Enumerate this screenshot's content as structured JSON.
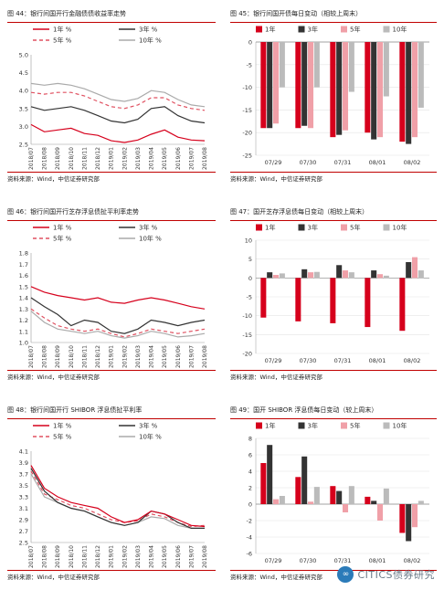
{
  "panels": [
    {
      "title": "图 44：银行间国开行金融债债收益率走势",
      "source": "资料来源：Wind，中信证券研究部"
    },
    {
      "title": "图 45：银行间国开债每日变动（相较上周末）",
      "source": "资料来源：Wind，中信证券研究部"
    },
    {
      "title": "图 46：银行间国开行芝存浮息债扯平利率走势",
      "source": "资料来源：Wind，中信证券研究部"
    },
    {
      "title": "图 47：国开芝存浮息债每日变动（相较上周末）",
      "source": "资料来源：Wind，中信证券研究部"
    },
    {
      "title": "图 48：银行间国开行 SHIBOR 浮息债扯平利率",
      "source": "资料来源：Wind，中信证券研究部"
    },
    {
      "title": "图 49：国开 SHIBOR 浮息债每日变动（较上周末）",
      "source": "资料来源：Wind，中信证券研究部"
    }
  ],
  "watermark": {
    "text": "CITICS债券研究",
    "logo": "∞"
  },
  "chart_data": [
    {
      "type": "line",
      "legend_position": "top",
      "x": [
        "2018/07",
        "2018/08",
        "2018/09",
        "2018/10",
        "2018/11",
        "2018/12",
        "2019/01",
        "2019/02",
        "2019/03",
        "2019/04",
        "2019/05",
        "2019/06",
        "2019/07",
        "2019/08"
      ],
      "ylim": [
        2.5,
        5.0
      ],
      "yticks": [
        "2.5",
        "3.0",
        "3.5",
        "4.0",
        "4.5",
        "5.0"
      ],
      "grid": false,
      "series": [
        {
          "name": "1年 %",
          "color": "#d6001c",
          "dash": "",
          "values": [
            3.05,
            2.85,
            2.9,
            2.95,
            2.8,
            2.75,
            2.6,
            2.55,
            2.62,
            2.78,
            2.9,
            2.7,
            2.62,
            2.6
          ]
        },
        {
          "name": "3年 %",
          "color": "#333333",
          "dash": "",
          "values": [
            3.55,
            3.45,
            3.5,
            3.55,
            3.45,
            3.3,
            3.15,
            3.1,
            3.2,
            3.5,
            3.55,
            3.3,
            3.15,
            3.1
          ]
        },
        {
          "name": "5年 %",
          "color": "#e05060",
          "dash": "4,3",
          "values": [
            3.95,
            3.9,
            3.95,
            3.95,
            3.85,
            3.7,
            3.55,
            3.5,
            3.6,
            3.8,
            3.8,
            3.6,
            3.5,
            3.45
          ]
        },
        {
          "name": "10年 %",
          "color": "#aaaaaa",
          "dash": "",
          "values": [
            4.2,
            4.15,
            4.2,
            4.15,
            4.05,
            3.9,
            3.75,
            3.7,
            3.78,
            4.0,
            3.95,
            3.75,
            3.6,
            3.55
          ]
        }
      ]
    },
    {
      "type": "bar",
      "legend_position": "top",
      "categories": [
        "07/29",
        "07/30",
        "07/31",
        "08/01",
        "08/02"
      ],
      "ylim": [
        -25,
        0
      ],
      "yticks": [
        "-25",
        "-20",
        "-15",
        "-10",
        "-5",
        "0"
      ],
      "grid": true,
      "series": [
        {
          "name": "1年",
          "color": "#d6001c",
          "values": [
            -19,
            -19,
            -21,
            -20,
            -22
          ]
        },
        {
          "name": "3年",
          "color": "#333333",
          "values": [
            -19,
            -18.5,
            -20.5,
            -21.5,
            -22.5
          ]
        },
        {
          "name": "5年",
          "color": "#f0a0a8",
          "values": [
            -18,
            -19,
            -19.5,
            -21,
            -21
          ]
        },
        {
          "name": "10年",
          "color": "#bbbbbb",
          "values": [
            -10,
            -10,
            -11,
            -12,
            -14.5
          ]
        }
      ]
    },
    {
      "type": "line",
      "legend_position": "top",
      "x": [
        "2018/07",
        "2018/08",
        "2018/09",
        "2018/10",
        "2018/11",
        "2018/12",
        "2019/01",
        "2019/02",
        "2019/03",
        "2019/04",
        "2019/05",
        "2019/06",
        "2019/07",
        "2019/08"
      ],
      "ylim": [
        1.0,
        1.8
      ],
      "yticks": [
        "1.0",
        "1.1",
        "1.2",
        "1.3",
        "1.4",
        "1.5",
        "1.6",
        "1.7",
        "1.8"
      ],
      "grid": false,
      "series": [
        {
          "name": "1年 %",
          "color": "#d6001c",
          "dash": "",
          "values": [
            1.5,
            1.45,
            1.42,
            1.4,
            1.38,
            1.4,
            1.36,
            1.35,
            1.38,
            1.4,
            1.38,
            1.35,
            1.32,
            1.3
          ]
        },
        {
          "name": "3年 %",
          "color": "#333333",
          "dash": "",
          "values": [
            1.4,
            1.32,
            1.25,
            1.15,
            1.2,
            1.18,
            1.1,
            1.08,
            1.12,
            1.2,
            1.18,
            1.15,
            1.18,
            1.2
          ]
        },
        {
          "name": "5年 %",
          "color": "#e05060",
          "dash": "4,3",
          "values": [
            1.3,
            1.22,
            1.15,
            1.12,
            1.1,
            1.12,
            1.08,
            1.05,
            1.08,
            1.12,
            1.1,
            1.08,
            1.1,
            1.12
          ]
        },
        {
          "name": "10年 %",
          "color": "#aaaaaa",
          "dash": "",
          "values": [
            1.28,
            1.18,
            1.12,
            1.1,
            1.08,
            1.1,
            1.06,
            1.04,
            1.06,
            1.1,
            1.08,
            1.05,
            1.06,
            1.08
          ]
        }
      ]
    },
    {
      "type": "bar",
      "legend_position": "top",
      "categories": [
        "07/29",
        "07/30",
        "07/31",
        "08/01",
        "08/02"
      ],
      "ylim": [
        -20,
        10
      ],
      "yticks": [
        "-20",
        "-15",
        "-10",
        "-5",
        "0",
        "5",
        "10"
      ],
      "grid": true,
      "series": [
        {
          "name": "1年",
          "color": "#d6001c",
          "values": [
            -10.5,
            -11.5,
            -12,
            -13,
            -14
          ]
        },
        {
          "name": "3年",
          "color": "#333333",
          "values": [
            1.5,
            2.3,
            3.4,
            2.0,
            4.2
          ]
        },
        {
          "name": "5年",
          "color": "#f0a0a8",
          "values": [
            0.8,
            1.5,
            2.0,
            1.0,
            5.5
          ]
        },
        {
          "name": "10年",
          "color": "#bbbbbb",
          "values": [
            1.2,
            1.6,
            1.5,
            0.6,
            2.0
          ]
        }
      ]
    },
    {
      "type": "line",
      "legend_position": "top",
      "x": [
        "2018/07",
        "2018/08",
        "2018/09",
        "2018/10",
        "2018/11",
        "2018/12",
        "2019/01",
        "2019/02",
        "2019/03",
        "2019/04",
        "2019/05",
        "2019/06",
        "2019/07",
        "2019/08"
      ],
      "ylim": [
        2.5,
        4.1
      ],
      "yticks": [
        "2.5",
        "2.7",
        "2.9",
        "3.1",
        "3.3",
        "3.5",
        "3.7",
        "3.9",
        "4.1"
      ],
      "grid": false,
      "series": [
        {
          "name": "1年 %",
          "color": "#d6001c",
          "dash": "",
          "values": [
            3.85,
            3.45,
            3.3,
            3.2,
            3.15,
            3.1,
            2.95,
            2.85,
            2.9,
            3.05,
            3.0,
            2.9,
            2.8,
            2.78
          ]
        },
        {
          "name": "3年 %",
          "color": "#333333",
          "dash": "",
          "values": [
            3.8,
            3.4,
            3.2,
            3.1,
            3.05,
            2.95,
            2.85,
            2.8,
            2.85,
            3.05,
            3.0,
            2.85,
            2.75,
            2.75
          ]
        },
        {
          "name": "5年 %",
          "color": "#e05060",
          "dash": "4,3",
          "values": [
            3.75,
            3.35,
            3.25,
            3.15,
            3.1,
            3.0,
            2.9,
            2.85,
            2.88,
            3.0,
            2.95,
            2.85,
            2.78,
            2.8
          ]
        },
        {
          "name": "10年 %",
          "color": "#aaaaaa",
          "dash": "",
          "values": [
            3.7,
            3.3,
            3.2,
            3.1,
            3.05,
            2.95,
            2.85,
            2.8,
            2.85,
            2.95,
            2.92,
            2.8,
            2.75,
            2.75
          ]
        }
      ]
    },
    {
      "type": "bar",
      "legend_position": "top",
      "categories": [
        "07/29",
        "07/30",
        "07/31",
        "08/01",
        "08/02"
      ],
      "ylim": [
        -6,
        8
      ],
      "yticks": [
        "-6",
        "-4",
        "-2",
        "0",
        "2",
        "4",
        "6",
        "8"
      ],
      "grid": true,
      "series": [
        {
          "name": "1年",
          "color": "#d6001c",
          "values": [
            5.0,
            3.3,
            2.2,
            0.9,
            -3.5
          ]
        },
        {
          "name": "3年",
          "color": "#333333",
          "values": [
            7.2,
            5.8,
            1.6,
            0.4,
            -4.5
          ]
        },
        {
          "name": "5年",
          "color": "#f0a0a8",
          "values": [
            0.6,
            0.3,
            -1.0,
            -2.0,
            -2.8
          ]
        },
        {
          "name": "10年",
          "color": "#bbbbbb",
          "values": [
            1.0,
            2.1,
            2.2,
            1.9,
            0.4
          ]
        }
      ]
    }
  ]
}
